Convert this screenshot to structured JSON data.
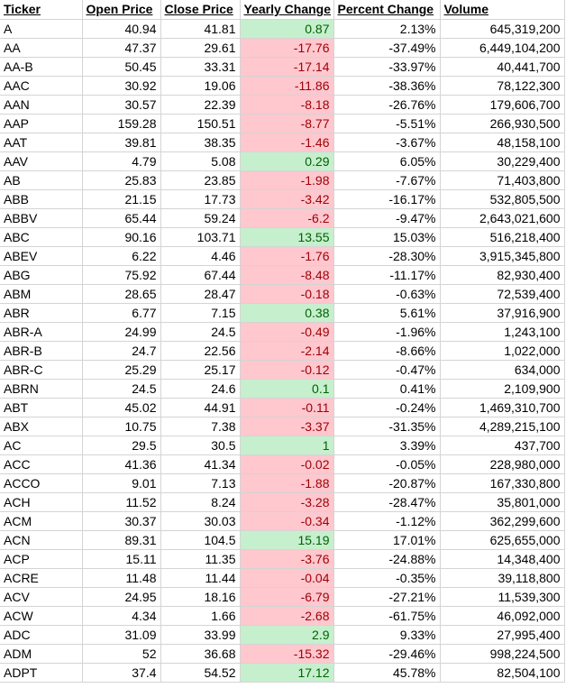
{
  "headers": [
    "Ticker",
    "Open Price",
    "Close Price",
    "Yearly Change",
    "Percent Change",
    "Volume"
  ],
  "colors": {
    "positive_fill": "#c6efce",
    "positive_text": "#006100",
    "negative_fill": "#ffc7ce",
    "negative_text": "#9c0006",
    "gridline": "#d4d4d4"
  },
  "rows": [
    {
      "ticker": "A",
      "open": "40.94",
      "close": "41.81",
      "yearly": "0.87",
      "percent": "2.13%",
      "volume": "645,319,200",
      "sign": "pos"
    },
    {
      "ticker": "AA",
      "open": "47.37",
      "close": "29.61",
      "yearly": "-17.76",
      "percent": "-37.49%",
      "volume": "6,449,104,200",
      "sign": "neg"
    },
    {
      "ticker": "AA-B",
      "open": "50.45",
      "close": "33.31",
      "yearly": "-17.14",
      "percent": "-33.97%",
      "volume": "40,441,700",
      "sign": "neg"
    },
    {
      "ticker": "AAC",
      "open": "30.92",
      "close": "19.06",
      "yearly": "-11.86",
      "percent": "-38.36%",
      "volume": "78,122,300",
      "sign": "neg"
    },
    {
      "ticker": "AAN",
      "open": "30.57",
      "close": "22.39",
      "yearly": "-8.18",
      "percent": "-26.76%",
      "volume": "179,606,700",
      "sign": "neg"
    },
    {
      "ticker": "AAP",
      "open": "159.28",
      "close": "150.51",
      "yearly": "-8.77",
      "percent": "-5.51%",
      "volume": "266,930,500",
      "sign": "neg"
    },
    {
      "ticker": "AAT",
      "open": "39.81",
      "close": "38.35",
      "yearly": "-1.46",
      "percent": "-3.67%",
      "volume": "48,158,100",
      "sign": "neg"
    },
    {
      "ticker": "AAV",
      "open": "4.79",
      "close": "5.08",
      "yearly": "0.29",
      "percent": "6.05%",
      "volume": "30,229,400",
      "sign": "pos"
    },
    {
      "ticker": "AB",
      "open": "25.83",
      "close": "23.85",
      "yearly": "-1.98",
      "percent": "-7.67%",
      "volume": "71,403,800",
      "sign": "neg"
    },
    {
      "ticker": "ABB",
      "open": "21.15",
      "close": "17.73",
      "yearly": "-3.42",
      "percent": "-16.17%",
      "volume": "532,805,500",
      "sign": "neg"
    },
    {
      "ticker": "ABBV",
      "open": "65.44",
      "close": "59.24",
      "yearly": "-6.2",
      "percent": "-9.47%",
      "volume": "2,643,021,600",
      "sign": "neg"
    },
    {
      "ticker": "ABC",
      "open": "90.16",
      "close": "103.71",
      "yearly": "13.55",
      "percent": "15.03%",
      "volume": "516,218,400",
      "sign": "pos"
    },
    {
      "ticker": "ABEV",
      "open": "6.22",
      "close": "4.46",
      "yearly": "-1.76",
      "percent": "-28.30%",
      "volume": "3,915,345,800",
      "sign": "neg"
    },
    {
      "ticker": "ABG",
      "open": "75.92",
      "close": "67.44",
      "yearly": "-8.48",
      "percent": "-11.17%",
      "volume": "82,930,400",
      "sign": "neg"
    },
    {
      "ticker": "ABM",
      "open": "28.65",
      "close": "28.47",
      "yearly": "-0.18",
      "percent": "-0.63%",
      "volume": "72,539,400",
      "sign": "neg"
    },
    {
      "ticker": "ABR",
      "open": "6.77",
      "close": "7.15",
      "yearly": "0.38",
      "percent": "5.61%",
      "volume": "37,916,900",
      "sign": "pos"
    },
    {
      "ticker": "ABR-A",
      "open": "24.99",
      "close": "24.5",
      "yearly": "-0.49",
      "percent": "-1.96%",
      "volume": "1,243,100",
      "sign": "neg"
    },
    {
      "ticker": "ABR-B",
      "open": "24.7",
      "close": "22.56",
      "yearly": "-2.14",
      "percent": "-8.66%",
      "volume": "1,022,000",
      "sign": "neg"
    },
    {
      "ticker": "ABR-C",
      "open": "25.29",
      "close": "25.17",
      "yearly": "-0.12",
      "percent": "-0.47%",
      "volume": "634,000",
      "sign": "neg"
    },
    {
      "ticker": "ABRN",
      "open": "24.5",
      "close": "24.6",
      "yearly": "0.1",
      "percent": "0.41%",
      "volume": "2,109,900",
      "sign": "pos"
    },
    {
      "ticker": "ABT",
      "open": "45.02",
      "close": "44.91",
      "yearly": "-0.11",
      "percent": "-0.24%",
      "volume": "1,469,310,700",
      "sign": "neg"
    },
    {
      "ticker": "ABX",
      "open": "10.75",
      "close": "7.38",
      "yearly": "-3.37",
      "percent": "-31.35%",
      "volume": "4,289,215,100",
      "sign": "neg"
    },
    {
      "ticker": "AC",
      "open": "29.5",
      "close": "30.5",
      "yearly": "1",
      "percent": "3.39%",
      "volume": "437,700",
      "sign": "pos"
    },
    {
      "ticker": "ACC",
      "open": "41.36",
      "close": "41.34",
      "yearly": "-0.02",
      "percent": "-0.05%",
      "volume": "228,980,000",
      "sign": "neg"
    },
    {
      "ticker": "ACCO",
      "open": "9.01",
      "close": "7.13",
      "yearly": "-1.88",
      "percent": "-20.87%",
      "volume": "167,330,800",
      "sign": "neg"
    },
    {
      "ticker": "ACH",
      "open": "11.52",
      "close": "8.24",
      "yearly": "-3.28",
      "percent": "-28.47%",
      "volume": "35,801,000",
      "sign": "neg"
    },
    {
      "ticker": "ACM",
      "open": "30.37",
      "close": "30.03",
      "yearly": "-0.34",
      "percent": "-1.12%",
      "volume": "362,299,600",
      "sign": "neg"
    },
    {
      "ticker": "ACN",
      "open": "89.31",
      "close": "104.5",
      "yearly": "15.19",
      "percent": "17.01%",
      "volume": "625,655,000",
      "sign": "pos"
    },
    {
      "ticker": "ACP",
      "open": "15.11",
      "close": "11.35",
      "yearly": "-3.76",
      "percent": "-24.88%",
      "volume": "14,348,400",
      "sign": "neg"
    },
    {
      "ticker": "ACRE",
      "open": "11.48",
      "close": "11.44",
      "yearly": "-0.04",
      "percent": "-0.35%",
      "volume": "39,118,800",
      "sign": "neg"
    },
    {
      "ticker": "ACV",
      "open": "24.95",
      "close": "18.16",
      "yearly": "-6.79",
      "percent": "-27.21%",
      "volume": "11,539,300",
      "sign": "neg"
    },
    {
      "ticker": "ACW",
      "open": "4.34",
      "close": "1.66",
      "yearly": "-2.68",
      "percent": "-61.75%",
      "volume": "46,092,000",
      "sign": "neg"
    },
    {
      "ticker": "ADC",
      "open": "31.09",
      "close": "33.99",
      "yearly": "2.9",
      "percent": "9.33%",
      "volume": "27,995,400",
      "sign": "pos"
    },
    {
      "ticker": "ADM",
      "open": "52",
      "close": "36.68",
      "yearly": "-15.32",
      "percent": "-29.46%",
      "volume": "998,224,500",
      "sign": "neg"
    },
    {
      "ticker": "ADPT",
      "open": "37.4",
      "close": "54.52",
      "yearly": "17.12",
      "percent": "45.78%",
      "volume": "82,504,100",
      "sign": "pos"
    }
  ]
}
